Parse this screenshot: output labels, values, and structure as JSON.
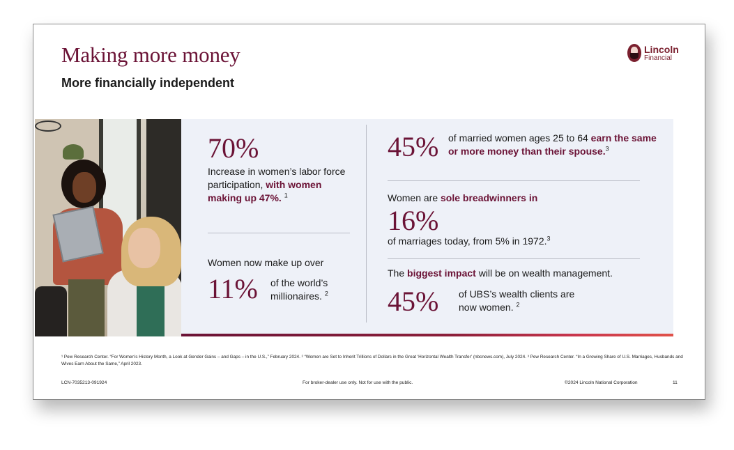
{
  "title": "Making more money",
  "subtitle": "More financially independent",
  "logo": {
    "line1": "Lincoln",
    "line2": "Financial",
    "icon": "lincoln-portrait-icon"
  },
  "stat1": {
    "value": "70%",
    "text_a": "Increase in women’s labor force participation, ",
    "text_hl": "with women making up 47%.",
    "ref": "1"
  },
  "stat2": {
    "intro": "Women now make up over",
    "value": "11%",
    "text": "of the world’s millionaires.",
    "ref": "2"
  },
  "stat3": {
    "value": "45%",
    "text_a": "of married women ages 25 to 64 ",
    "text_hl": "earn the same or more money than their spouse.",
    "ref": "3"
  },
  "stat4": {
    "intro_a": "Women are ",
    "intro_hl": "sole breadwinners in",
    "value": "16%",
    "text": "of marriages today, from 5% in 1972.",
    "ref": "3"
  },
  "stat5": {
    "intro_a": "The ",
    "intro_hl": "biggest impact",
    "intro_b": " will be on wealth management.",
    "value": "45%",
    "text": "of UBS’s wealth clients are now women.",
    "ref": "2"
  },
  "footnotes": "¹ Pew Research Center. “For Women’s History Month, a Look at Gender Gains – and Gaps – in the U.S.,” February 2024.  ² “Women are Set to Inherit Trillions of Dollars in the Great ‘Horizontal Wealth Transfer’ (nbcnews.com), July 2024.  ³ Pew Research Center. “In a Growing Share of U.S. Marriages, Husbands and Wives Earn About the Same,” April 2023.",
  "footer": {
    "code": "LCN-7035213-091924",
    "disclaimer": "For broker-dealer use only. Not for use with the public.",
    "copyright": "©2024 Lincoln National Corporation",
    "page": "11"
  },
  "colors": {
    "accent": "#6b1336",
    "panel": "#eef1f8",
    "bar_end": "#e0524a"
  }
}
